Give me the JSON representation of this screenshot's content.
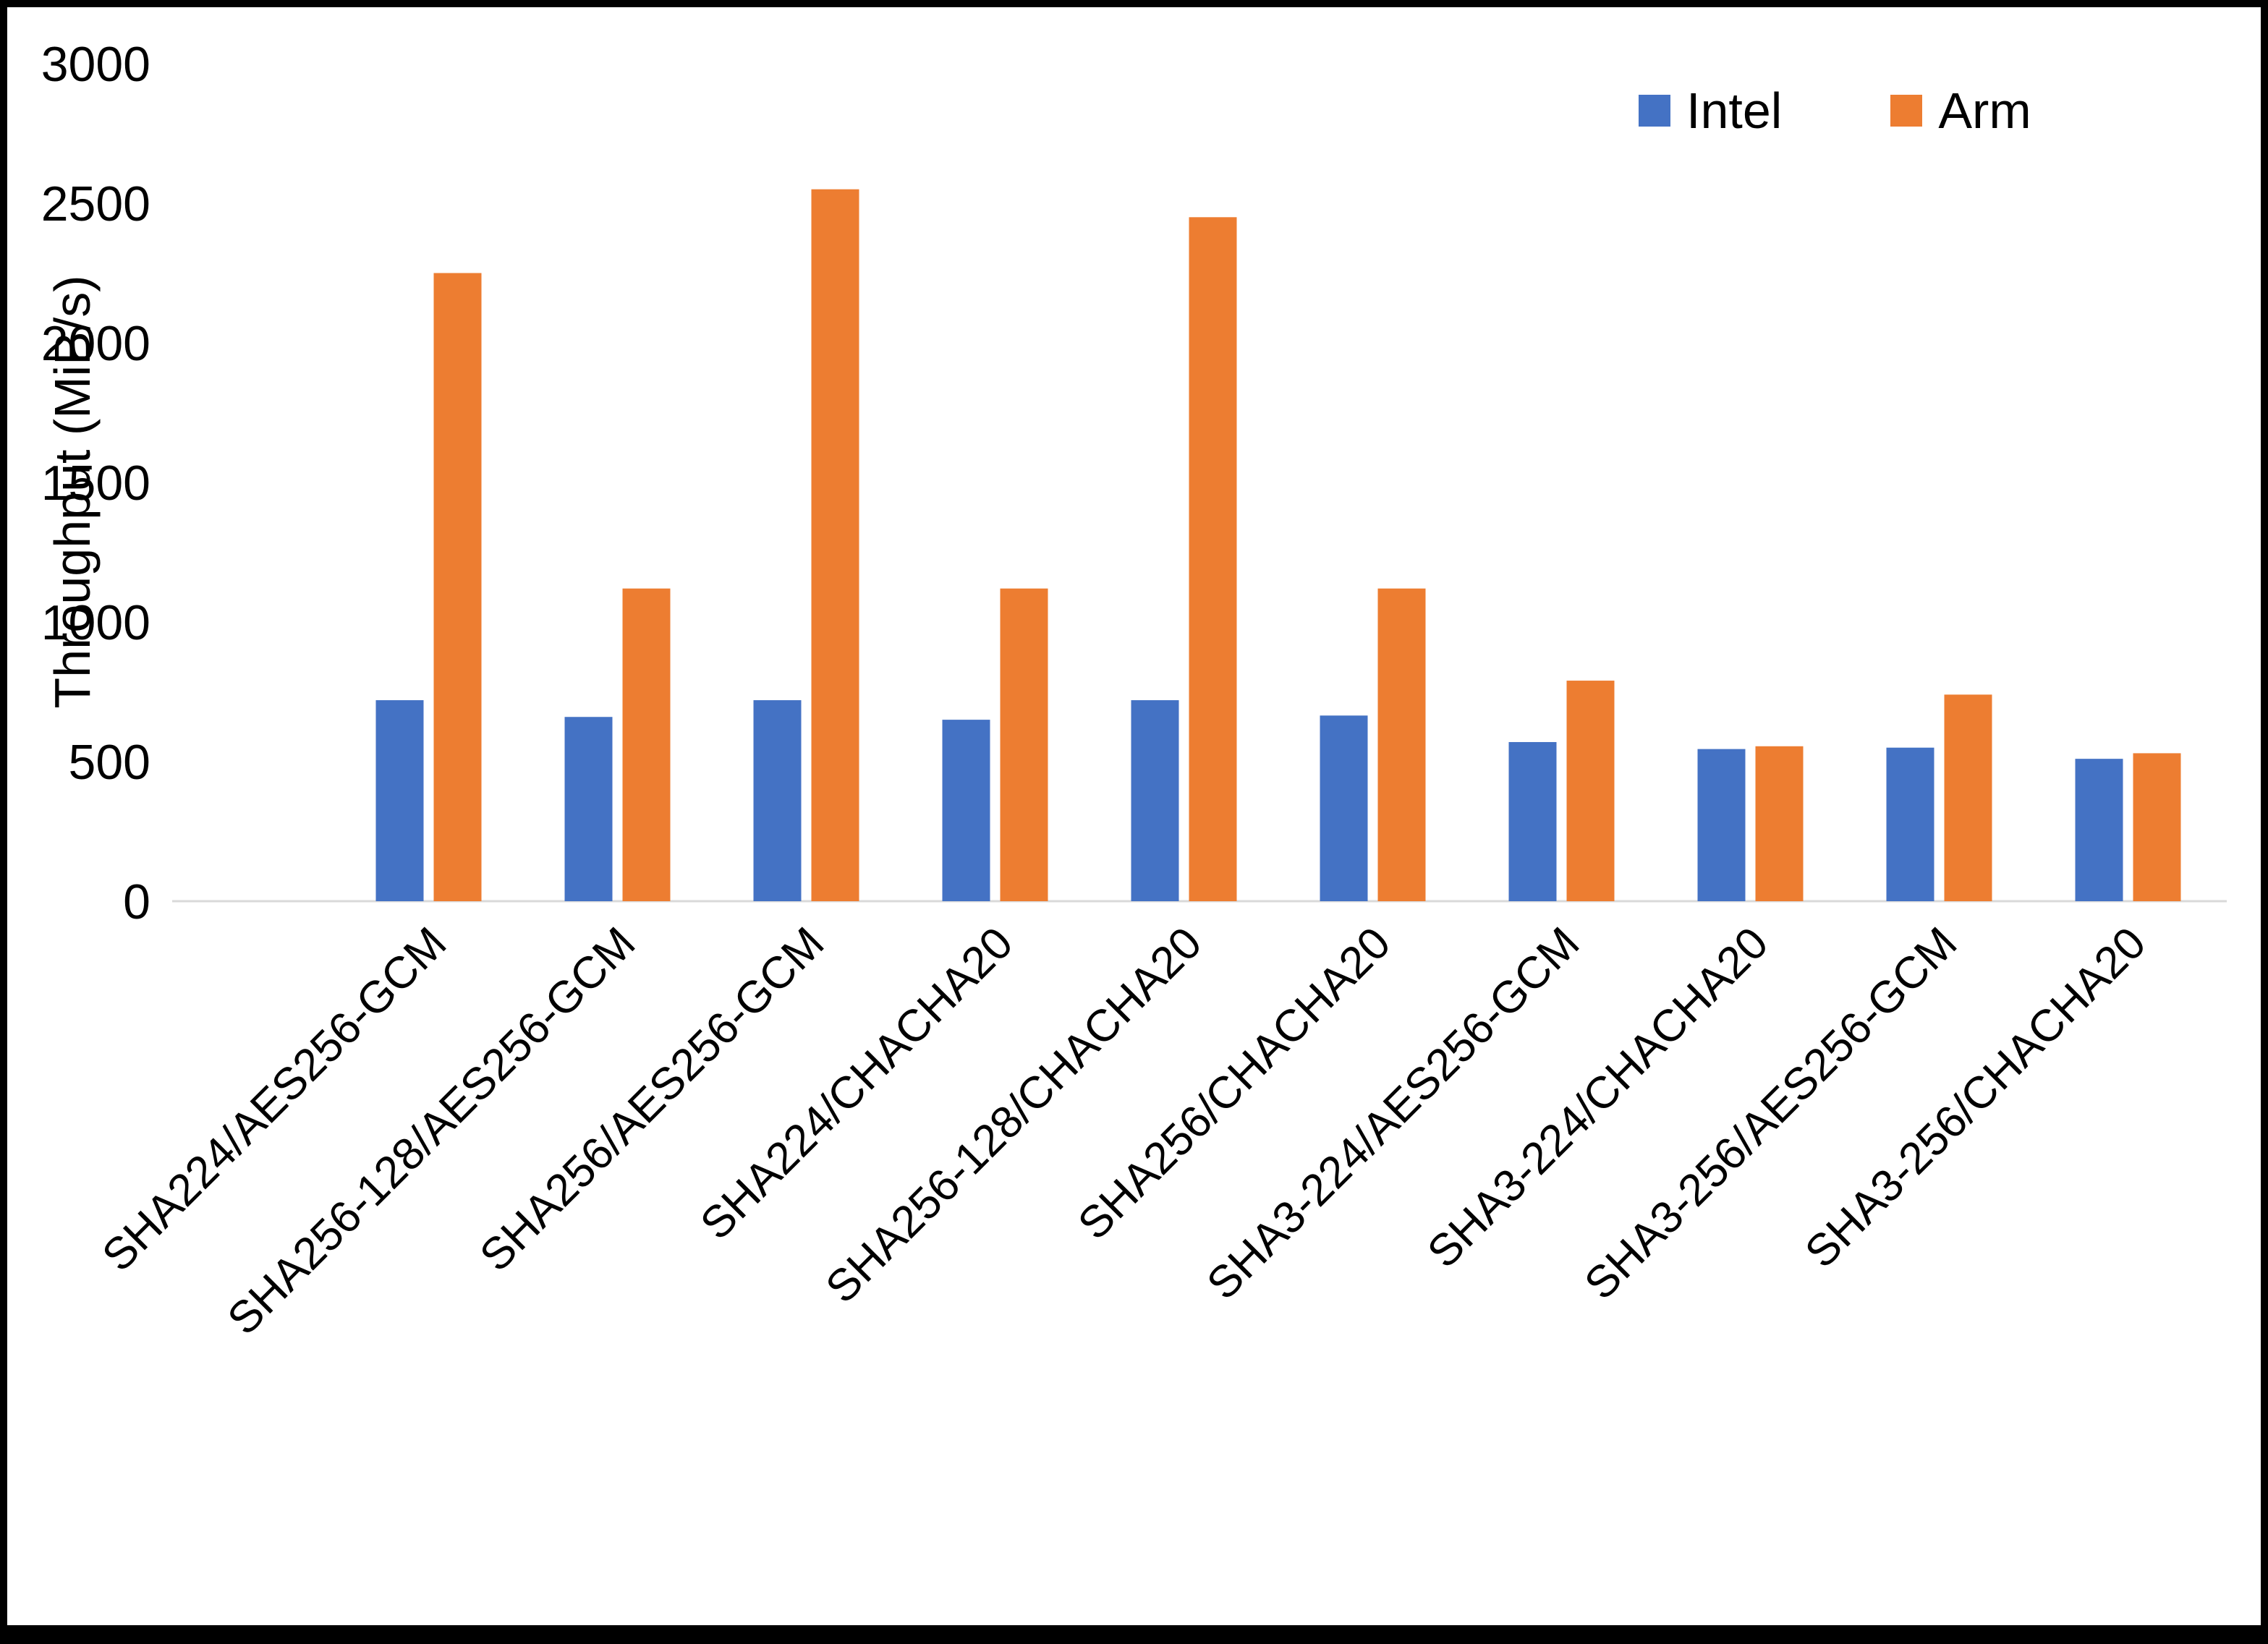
{
  "chart_data": {
    "type": "bar",
    "title": "",
    "xlabel": "",
    "ylabel": "Throughput (MiB/s)",
    "ylim": [
      0,
      3000
    ],
    "ytick_step": 500,
    "grid": false,
    "legend_position": "top-right",
    "categories": [
      "SHA224/AES256-GCM",
      "SHA256-128/AES256-GCM",
      "SHA256/AES256-GCM",
      "SHA224/CHACHA20",
      "SHA256-128/CHACHA20",
      "SHA256/CHACHA20",
      "SHA3-224/AES256-GCM",
      "SHA3-224/CHACHA20",
      "SHA3-256/AES256-GCM",
      "SHA3-256/CHACHA20"
    ],
    "series": [
      {
        "name": "Intel",
        "color": "#4472C4",
        "values": [
          720,
          660,
          720,
          650,
          720,
          665,
          570,
          545,
          550,
          510
        ]
      },
      {
        "name": "Arm",
        "color": "#ED7D31",
        "values": [
          2250,
          1120,
          2550,
          1120,
          2450,
          1120,
          790,
          555,
          740,
          530
        ]
      }
    ],
    "axis_line_color": "#d9d9d9",
    "text_color": "#000000"
  }
}
